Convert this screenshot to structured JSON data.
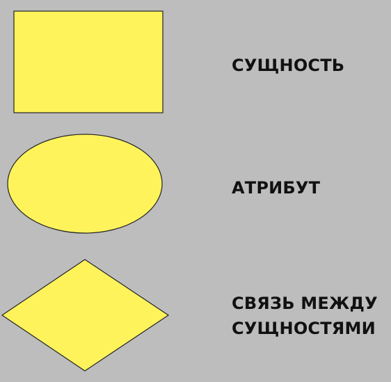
{
  "colors": {
    "background": "#bdbdbd",
    "shape_fill": "#fff35c",
    "shape_stroke": "#222222",
    "text": "#111111"
  },
  "legend": [
    {
      "shape": "rectangle",
      "label": "СУЩНОСТЬ"
    },
    {
      "shape": "ellipse",
      "label": "АТРИБУТ"
    },
    {
      "shape": "diamond",
      "label_lines": [
        "СВЯЗЬ МЕЖДУ",
        "СУЩНОСТЯМИ"
      ]
    }
  ]
}
